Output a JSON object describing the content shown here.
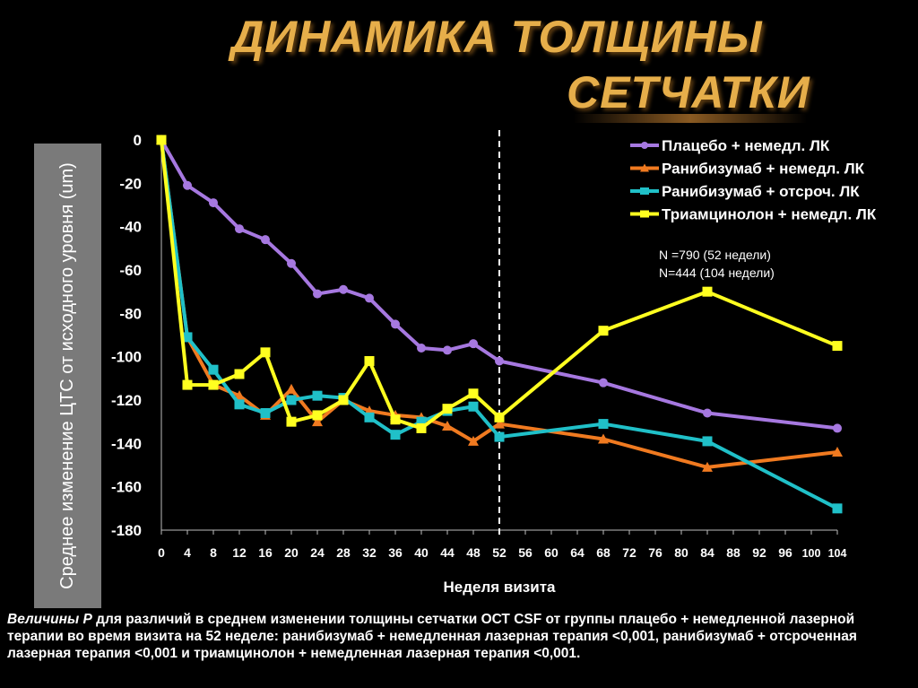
{
  "title_line1": "ДИНАМИКА ТОЛЩИНЫ",
  "title_line2": "СЕТЧАТКИ",
  "footnote_lead": "Величины P",
  "footnote_rest": " для различий в среднем изменении толщины сетчатки ОСТ CSF от группы плацебо + немедленной лазерной терапии во время визита на 52 неделе: ранибизумаб + немедленная лазерная терапия <0,001, ранибизумаб + отсроченная лазерная терапия <0,001 и триамцинолон + немедленная лазерная терапия <0,001.",
  "chart_data": {
    "type": "line",
    "xlabel": "Неделя визита",
    "ylabel": "Среднее изменение ЦТС от исходного уровня (um)",
    "xlim": [
      0,
      104
    ],
    "ylim": [
      -180,
      0
    ],
    "x_ticks": [
      0,
      4,
      8,
      12,
      16,
      20,
      24,
      28,
      32,
      36,
      40,
      44,
      48,
      52,
      56,
      60,
      64,
      68,
      72,
      76,
      80,
      84,
      88,
      92,
      96,
      100,
      104
    ],
    "y_ticks": [
      0,
      -20,
      -40,
      -60,
      -80,
      -100,
      -120,
      -140,
      -160,
      -180
    ],
    "grid": false,
    "legend_position": "top-right",
    "reference_line": {
      "x": 52,
      "style": "dashed"
    },
    "annotation": [
      "N =790 (52 недели)",
      "N=444 (104 недели)"
    ],
    "x": [
      0,
      4,
      8,
      12,
      16,
      20,
      24,
      28,
      32,
      36,
      40,
      44,
      48,
      52,
      68,
      84,
      104
    ],
    "series": [
      {
        "name": "Плацебо + немедл. ЛК",
        "color": "#a678e0",
        "marker": "circle",
        "values": [
          0,
          -21,
          -29,
          -41,
          -46,
          -57,
          -71,
          -69,
          -73,
          -85,
          -96,
          -97,
          -94,
          -102,
          -112,
          -126,
          -133
        ]
      },
      {
        "name": "Ранибизумаб + немедл. ЛК",
        "color": "#f07a20",
        "marker": "triangle",
        "values": [
          0,
          -91,
          -113,
          -118,
          -127,
          -115,
          -130,
          -120,
          -125,
          -127,
          -128,
          -132,
          -139,
          -131,
          -138,
          -151,
          -144
        ]
      },
      {
        "name": "Ранибизумаб + отсроч. ЛК",
        "color": "#20c0c8",
        "marker": "square",
        "values": [
          0,
          -91,
          -106,
          -122,
          -126,
          -120,
          -118,
          -119,
          -128,
          -136,
          -130,
          -125,
          -123,
          -137,
          -131,
          -139,
          -170
        ]
      },
      {
        "name": "Триамцинолон + немедл. ЛК",
        "color": "#ffff20",
        "marker": "square",
        "values": [
          0,
          -113,
          -113,
          -108,
          -98,
          -130,
          -127,
          -120,
          -102,
          -129,
          -133,
          -124,
          -117,
          -128,
          -88,
          -70,
          -95
        ]
      }
    ]
  }
}
